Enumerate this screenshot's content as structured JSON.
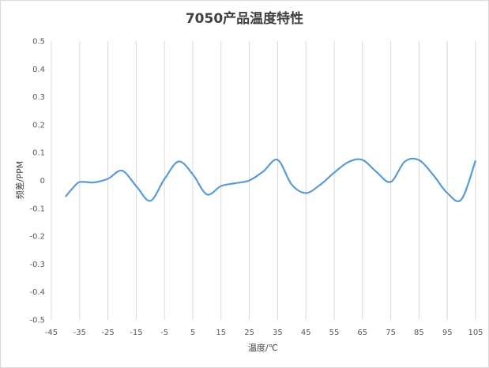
{
  "chart_data": {
    "type": "line",
    "title": "7050产品温度特性",
    "xlabel": "温度/℃",
    "ylabel": "频差/PPM",
    "xlim": [
      -45,
      105
    ],
    "ylim": [
      -0.5,
      0.5
    ],
    "x_ticks": [
      -45,
      -35,
      -25,
      -15,
      -5,
      5,
      15,
      25,
      35,
      45,
      55,
      65,
      75,
      85,
      95,
      105
    ],
    "y_ticks": [
      0.5,
      0.4,
      0.3,
      0.2,
      0.1,
      0,
      -0.1,
      -0.2,
      -0.3,
      -0.4,
      -0.5
    ],
    "grid": "vertical",
    "color": "#5b9bd5",
    "series": [
      {
        "x": [
          -40,
          -36,
          -34,
          -30,
          -25,
          -20,
          -15,
          -10,
          -5,
          0,
          5,
          10,
          15,
          20,
          25,
          30,
          35,
          40,
          45,
          50,
          55,
          60,
          65,
          70,
          75,
          80,
          85,
          90,
          95,
          100,
          105
        ],
        "values": [
          -0.058,
          -0.012,
          -0.005,
          -0.007,
          0.006,
          0.035,
          -0.02,
          -0.073,
          0.005,
          0.068,
          0.022,
          -0.05,
          -0.02,
          -0.01,
          0.0,
          0.033,
          0.074,
          -0.015,
          -0.045,
          -0.016,
          0.028,
          0.066,
          0.074,
          0.03,
          -0.005,
          0.068,
          0.073,
          0.02,
          -0.045,
          -0.068,
          0.072
        ]
      }
    ]
  }
}
